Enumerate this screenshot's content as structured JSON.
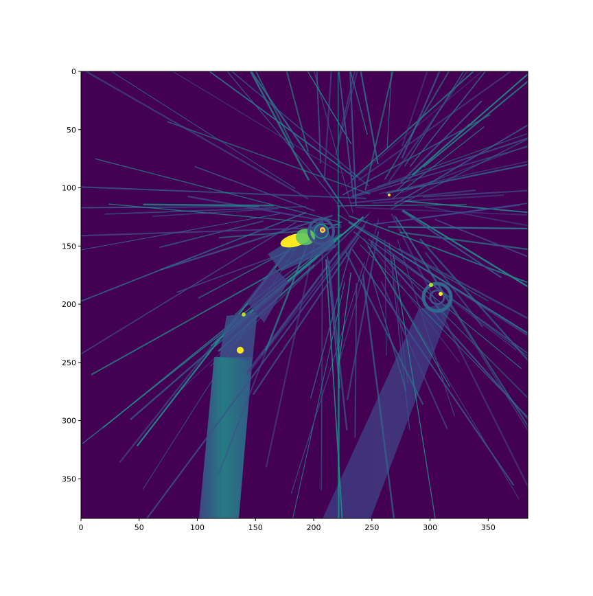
{
  "image": {
    "colormap": "viridis",
    "background_color": "#440154",
    "x_range": [
      0,
      384
    ],
    "y_range": [
      0,
      384
    ],
    "y_inverted": true,
    "x_ticks": [
      "0",
      "50",
      "100",
      "150",
      "200",
      "250",
      "300",
      "350"
    ],
    "y_ticks": [
      "0",
      "50",
      "100",
      "150",
      "200",
      "250",
      "300",
      "350"
    ],
    "x_tick_values": [
      0,
      50,
      100,
      150,
      200,
      250,
      300,
      350
    ],
    "y_tick_values": [
      0,
      50,
      100,
      150,
      200,
      250,
      300,
      350
    ]
  }
}
